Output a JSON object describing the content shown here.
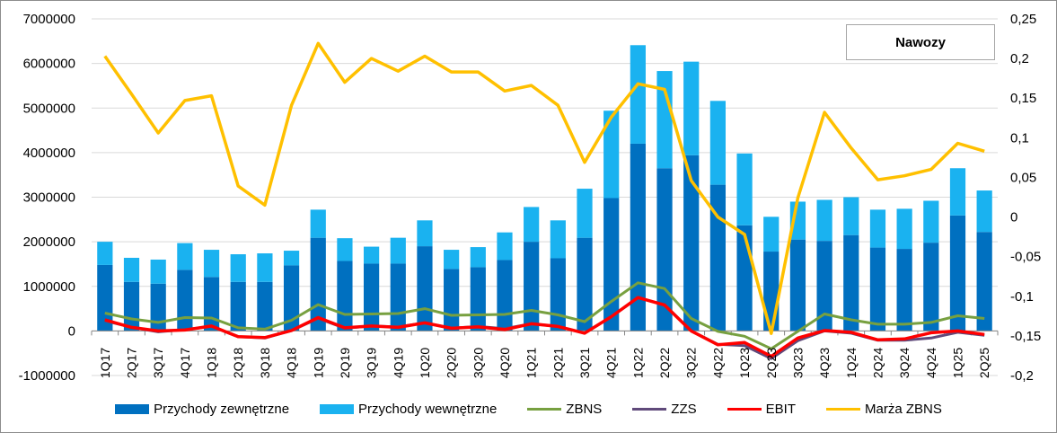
{
  "chart_data": {
    "type": "bar",
    "title": "Nawozy",
    "categories": [
      "1Q17",
      "2Q17",
      "3Q17",
      "4Q17",
      "1Q18",
      "2Q18",
      "3Q18",
      "4Q18",
      "1Q19",
      "2Q19",
      "3Q19",
      "4Q19",
      "1Q20",
      "2Q20",
      "3Q20",
      "4Q20",
      "1Q21",
      "2Q21",
      "3Q21",
      "4Q21",
      "1Q22",
      "2Q22",
      "3Q22",
      "4Q22",
      "1Q23",
      "2Q23",
      "3Q23",
      "4Q23",
      "1Q24",
      "2Q24",
      "3Q24",
      "4Q24",
      "1Q25",
      "2Q25"
    ],
    "y_left": {
      "min": -1000000,
      "max": 7000000,
      "step": 1000000,
      "ticks": [
        "-1000000",
        "0",
        "1000000",
        "2000000",
        "3000000",
        "4000000",
        "5000000",
        "6000000",
        "7000000"
      ]
    },
    "y_right": {
      "min": -0.2,
      "max": 0.25,
      "step": 0.05,
      "ticks": [
        "-0,2",
        "-0,15",
        "-0,1",
        "-0,05",
        "0",
        "0,05",
        "0,1",
        "0,15",
        "0,2",
        "0,25"
      ]
    },
    "grid": "horizontal",
    "legend_position": "bottom",
    "bar_series": [
      {
        "name": "Przychody zewnętrzne",
        "color": "#0070c0",
        "values": [
          1480000,
          1100000,
          1060000,
          1370000,
          1210000,
          1100000,
          1100000,
          1470000,
          2090000,
          1570000,
          1510000,
          1510000,
          1900000,
          1390000,
          1430000,
          1590000,
          2000000,
          1630000,
          2090000,
          2980000,
          4200000,
          3650000,
          3940000,
          3280000,
          2370000,
          1780000,
          2050000,
          2020000,
          2150000,
          1870000,
          1840000,
          1980000,
          2590000,
          2220000
        ]
      },
      {
        "name": "Przychody wewnętrzne",
        "color": "#1ab2f0",
        "values": [
          520000,
          540000,
          540000,
          600000,
          610000,
          620000,
          640000,
          330000,
          630000,
          510000,
          380000,
          580000,
          580000,
          430000,
          450000,
          620000,
          780000,
          850000,
          1100000,
          1960000,
          2210000,
          2180000,
          2100000,
          1880000,
          1610000,
          780000,
          850000,
          920000,
          850000,
          850000,
          900000,
          940000,
          1060000,
          930000
        ]
      }
    ],
    "line_series": [
      {
        "name": "ZBNS",
        "color": "#77a040",
        "axis": "left",
        "values": [
          400000,
          270000,
          190000,
          300000,
          290000,
          70000,
          40000,
          240000,
          590000,
          370000,
          380000,
          390000,
          500000,
          350000,
          360000,
          370000,
          460000,
          360000,
          210000,
          660000,
          1080000,
          950000,
          280000,
          -10000,
          -120000,
          -400000,
          -10000,
          380000,
          250000,
          150000,
          150000,
          190000,
          340000,
          280000
        ]
      },
      {
        "name": "ZZS",
        "color": "#604a7b",
        "axis": "left",
        "values": [
          230000,
          80000,
          -20000,
          30000,
          100000,
          -130000,
          -160000,
          10000,
          280000,
          60000,
          110000,
          90000,
          180000,
          60000,
          100000,
          50000,
          160000,
          100000,
          -50000,
          320000,
          740000,
          590000,
          0,
          -300000,
          -330000,
          -620000,
          -220000,
          0,
          -50000,
          -210000,
          -210000,
          -160000,
          -30000,
          -100000
        ]
      },
      {
        "name": "EBIT",
        "color": "#ff0000",
        "axis": "left",
        "values": [
          250000,
          80000,
          0,
          20000,
          110000,
          -130000,
          -150000,
          10000,
          300000,
          70000,
          110000,
          80000,
          180000,
          60000,
          90000,
          30000,
          160000,
          100000,
          -50000,
          320000,
          750000,
          580000,
          0,
          -310000,
          -260000,
          -570000,
          -160000,
          10000,
          -30000,
          -200000,
          -180000,
          -40000,
          0,
          -80000
        ]
      },
      {
        "name": "Marża ZBNS",
        "color": "#ffc000",
        "axis": "right",
        "values": [
          0.203,
          0.155,
          0.106,
          0.147,
          0.153,
          0.039,
          0.015,
          0.141,
          0.219,
          0.17,
          0.2,
          0.184,
          0.203,
          0.183,
          0.183,
          0.159,
          0.166,
          0.141,
          0.069,
          0.126,
          0.168,
          0.161,
          0.046,
          0.0,
          -0.022,
          -0.147,
          0.024,
          0.132,
          0.087,
          0.047,
          0.052,
          0.06,
          0.093,
          0.083
        ]
      }
    ],
    "legend": [
      "Przychody zewnętrzne",
      "Przychody wewnętrzne",
      "ZBNS",
      "ZZS",
      "EBIT",
      "Marża ZBNS"
    ]
  }
}
